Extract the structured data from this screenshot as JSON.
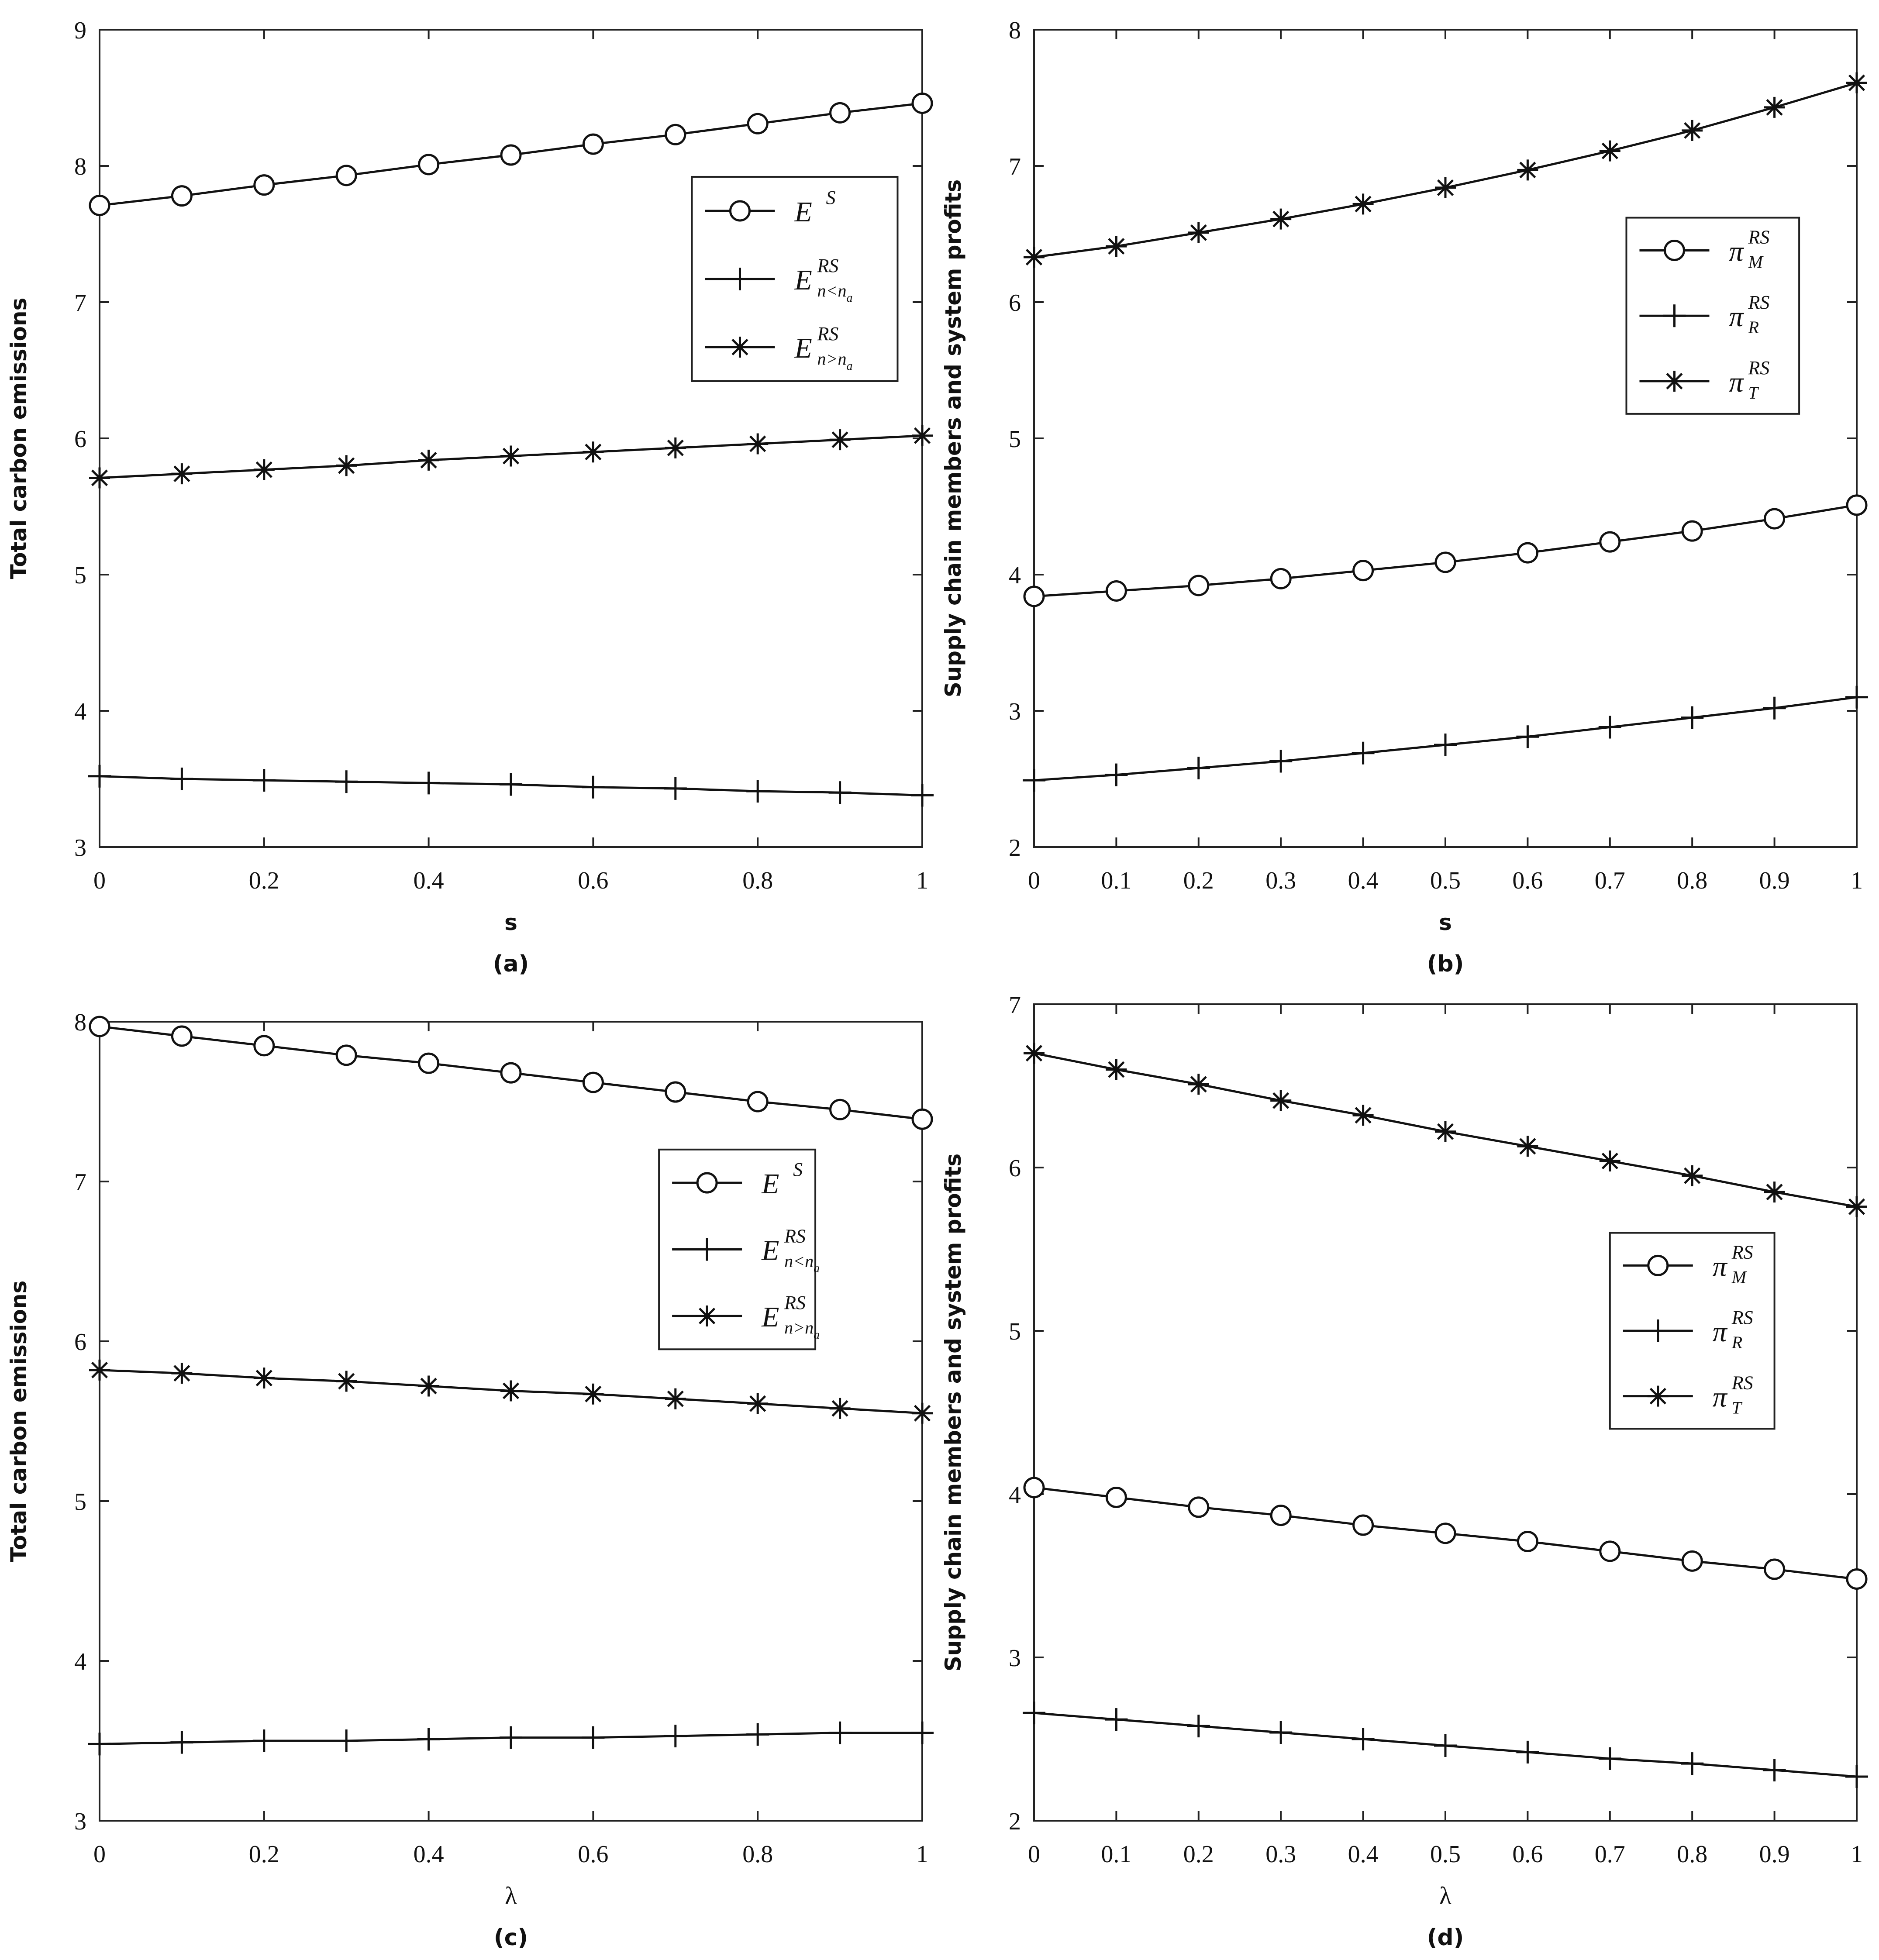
{
  "chart_data": [
    {
      "id": "a",
      "type": "line",
      "caption": "(a)",
      "xlabel": "s",
      "ylabel": "Total carbon emissions",
      "x": [
        0,
        0.1,
        0.2,
        0.3,
        0.4,
        0.5,
        0.6,
        0.7,
        0.8,
        0.9,
        1
      ],
      "xlim": [
        0,
        1
      ],
      "ylim": [
        3,
        9
      ],
      "xticks": [
        0,
        0.2,
        0.4,
        0.6,
        0.8,
        1
      ],
      "xtick_labels": [
        "0",
        "0.2",
        "0.4",
        "0.6",
        "0.8",
        "1"
      ],
      "yticks": [
        3,
        4,
        5,
        6,
        7,
        8,
        9
      ],
      "ytick_labels": [
        "3",
        "4",
        "5",
        "6",
        "7",
        "8",
        "9"
      ],
      "legend_position": "top-right",
      "legend_box": [
        0.72,
        0.82,
        0.97,
        0.57
      ],
      "grid": false,
      "series": [
        {
          "marker": "circle",
          "label_main": "E",
          "label_sup": "S",
          "label_sub": "",
          "label_sub2": "",
          "values": [
            7.71,
            7.78,
            7.86,
            7.93,
            8.01,
            8.08,
            8.16,
            8.23,
            8.31,
            8.39,
            8.46
          ]
        },
        {
          "marker": "plus",
          "label_main": "E",
          "label_sup": "RS",
          "label_sub": "n<n",
          "label_sub2": "a",
          "values": [
            3.52,
            3.5,
            3.49,
            3.48,
            3.47,
            3.46,
            3.44,
            3.43,
            3.41,
            3.4,
            3.38
          ]
        },
        {
          "marker": "star",
          "label_main": "E",
          "label_sup": "RS",
          "label_sub": "n>n",
          "label_sub2": "a",
          "values": [
            5.71,
            5.74,
            5.77,
            5.8,
            5.84,
            5.87,
            5.9,
            5.93,
            5.96,
            5.99,
            6.02
          ]
        }
      ]
    },
    {
      "id": "b",
      "type": "line",
      "caption": "(b)",
      "xlabel": "s",
      "ylabel": "Supply chain members and system profits",
      "x": [
        0,
        0.1,
        0.2,
        0.3,
        0.4,
        0.5,
        0.6,
        0.7,
        0.8,
        0.9,
        1
      ],
      "xlim": [
        0,
        1
      ],
      "ylim": [
        2,
        8
      ],
      "xticks": [
        0,
        0.1,
        0.2,
        0.3,
        0.4,
        0.5,
        0.6,
        0.7,
        0.8,
        0.9,
        1
      ],
      "xtick_labels": [
        "0",
        "0.1",
        "0.2",
        "0.3",
        "0.4",
        "0.5",
        "0.6",
        "0.7",
        "0.8",
        "0.9",
        "1"
      ],
      "yticks": [
        2,
        3,
        4,
        5,
        6,
        7,
        8
      ],
      "ytick_labels": [
        "2",
        "3",
        "4",
        "5",
        "6",
        "7",
        "8"
      ],
      "legend_position": "top-right",
      "legend_box": [
        0.72,
        0.77,
        0.93,
        0.53
      ],
      "grid": false,
      "series": [
        {
          "marker": "circle",
          "label_main": "π",
          "label_sup": "RS",
          "label_sub": "M",
          "label_sub2": "",
          "values": [
            3.84,
            3.88,
            3.92,
            3.97,
            4.03,
            4.09,
            4.16,
            4.24,
            4.32,
            4.41,
            4.51
          ]
        },
        {
          "marker": "plus",
          "label_main": "π",
          "label_sup": "RS",
          "label_sub": "R",
          "label_sub2": "",
          "values": [
            2.49,
            2.53,
            2.58,
            2.63,
            2.69,
            2.75,
            2.81,
            2.88,
            2.95,
            3.02,
            3.1
          ]
        },
        {
          "marker": "star",
          "label_main": "π",
          "label_sup": "RS",
          "label_sub": "T",
          "label_sub2": "",
          "values": [
            6.33,
            6.41,
            6.51,
            6.61,
            6.72,
            6.84,
            6.97,
            7.11,
            7.26,
            7.43,
            7.61
          ]
        }
      ]
    },
    {
      "id": "c",
      "type": "line",
      "caption": "(c)",
      "xlabel": "λ",
      "ylabel": "Total carbon emissions",
      "x": [
        0,
        0.1,
        0.2,
        0.3,
        0.4,
        0.5,
        0.6,
        0.7,
        0.8,
        0.9,
        1
      ],
      "xlim": [
        0,
        1
      ],
      "ylim": [
        3,
        8
      ],
      "xticks": [
        0,
        0.2,
        0.4,
        0.6,
        0.8,
        1
      ],
      "xtick_labels": [
        "0",
        "0.2",
        "0.4",
        "0.6",
        "0.8",
        "1"
      ],
      "yticks": [
        3,
        4,
        5,
        6,
        7,
        8
      ],
      "ytick_labels": [
        "3",
        "4",
        "5",
        "6",
        "7",
        "8"
      ],
      "legend_position": "right",
      "legend_box": [
        0.68,
        0.84,
        0.87,
        0.59
      ],
      "grid": false,
      "series": [
        {
          "marker": "circle",
          "label_main": "E",
          "label_sup": "S",
          "label_sub": "",
          "label_sub2": "",
          "values": [
            7.97,
            7.91,
            7.85,
            7.79,
            7.74,
            7.68,
            7.62,
            7.56,
            7.5,
            7.45,
            7.39
          ]
        },
        {
          "marker": "plus",
          "label_main": "E",
          "label_sup": "RS",
          "label_sub": "n<n",
          "label_sub2": "a",
          "values": [
            3.48,
            3.49,
            3.5,
            3.5,
            3.51,
            3.52,
            3.52,
            3.53,
            3.54,
            3.55,
            3.55
          ]
        },
        {
          "marker": "star",
          "label_main": "E",
          "label_sup": "RS",
          "label_sub": "n>n",
          "label_sub2": "a",
          "values": [
            5.82,
            5.8,
            5.77,
            5.75,
            5.72,
            5.69,
            5.67,
            5.64,
            5.61,
            5.58,
            5.55
          ]
        }
      ]
    },
    {
      "id": "d",
      "type": "line",
      "caption": "(d)",
      "xlabel": "λ",
      "ylabel": "Supply chain members and system profits",
      "x": [
        0,
        0.1,
        0.2,
        0.3,
        0.4,
        0.5,
        0.6,
        0.7,
        0.8,
        0.9,
        1
      ],
      "xlim": [
        0,
        1
      ],
      "ylim": [
        2,
        7
      ],
      "xticks": [
        0,
        0.1,
        0.2,
        0.3,
        0.4,
        0.5,
        0.6,
        0.7,
        0.8,
        0.9,
        1
      ],
      "xtick_labels": [
        "0",
        "0.1",
        "0.2",
        "0.3",
        "0.4",
        "0.5",
        "0.6",
        "0.7",
        "0.8",
        "0.9",
        "1"
      ],
      "yticks": [
        2,
        3,
        4,
        5,
        6,
        7
      ],
      "ytick_labels": [
        "2",
        "3",
        "4",
        "5",
        "6",
        "7"
      ],
      "legend_position": "right",
      "legend_box": [
        0.7,
        0.72,
        0.9,
        0.48
      ],
      "grid": false,
      "series": [
        {
          "marker": "circle",
          "label_main": "π",
          "label_sup": "RS",
          "label_sub": "M",
          "label_sub2": "",
          "values": [
            4.04,
            3.98,
            3.92,
            3.87,
            3.81,
            3.76,
            3.71,
            3.65,
            3.59,
            3.54,
            3.48
          ]
        },
        {
          "marker": "plus",
          "label_main": "π",
          "label_sup": "RS",
          "label_sub": "R",
          "label_sub2": "",
          "values": [
            2.66,
            2.62,
            2.58,
            2.54,
            2.5,
            2.46,
            2.42,
            2.38,
            2.35,
            2.31,
            2.27
          ]
        },
        {
          "marker": "star",
          "label_main": "π",
          "label_sup": "RS",
          "label_sub": "T",
          "label_sub2": "",
          "values": [
            6.7,
            6.6,
            6.51,
            6.41,
            6.32,
            6.22,
            6.13,
            6.04,
            5.95,
            5.85,
            5.76
          ]
        }
      ]
    }
  ]
}
